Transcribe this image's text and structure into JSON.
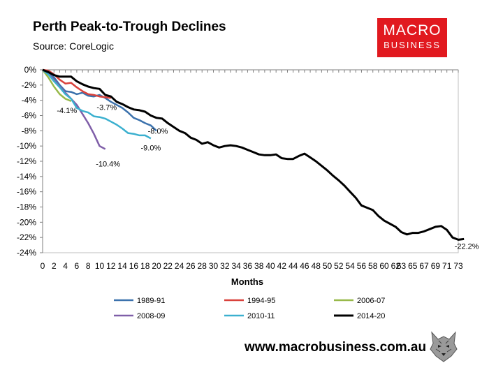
{
  "header": {
    "title": "Perth Peak-to-Trough Declines",
    "subtitle": "Source: CoreLogic"
  },
  "logo": {
    "line1": "MACRO",
    "line2": "BUSINESS"
  },
  "footer": {
    "url": "www.macrobusiness.com.au"
  },
  "chart_data": {
    "type": "line",
    "title": "Perth Peak-to-Trough Declines",
    "xlabel": "Months",
    "ylabel": "",
    "xlim": [
      0,
      73
    ],
    "ylim": [
      -24,
      0
    ],
    "x_ticks": [
      0,
      2,
      4,
      6,
      8,
      10,
      12,
      14,
      16,
      18,
      20,
      22,
      24,
      26,
      28,
      30,
      32,
      34,
      36,
      38,
      40,
      42,
      44,
      46,
      48,
      50,
      52,
      54,
      56,
      58,
      60,
      62,
      63,
      65,
      67,
      69,
      71,
      73
    ],
    "y_ticks": [
      0,
      -2,
      -4,
      -6,
      -8,
      -10,
      -12,
      -14,
      -16,
      -18,
      -20,
      -22,
      -24
    ],
    "y_tick_labels": [
      "0%",
      "-2%",
      "-4%",
      "-6%",
      "-8%",
      "-10%",
      "-12%",
      "-14%",
      "-16%",
      "-18%",
      "-20%",
      "-22%",
      "-24%"
    ],
    "legend_position": "bottom",
    "series": [
      {
        "name": "1989-91",
        "color": "#3c72ad",
        "end_label": "-8.0%",
        "values": [
          0,
          -0.3,
          -1.0,
          -2.0,
          -2.8,
          -2.9,
          -3.2,
          -3.0,
          -3.4,
          -3.5,
          -3.3,
          -3.7,
          -4.2,
          -4.6,
          -5.0,
          -5.6,
          -6.3,
          -6.6,
          -7.0,
          -7.3,
          -8.0
        ]
      },
      {
        "name": "1994-95",
        "color": "#d9423c",
        "end_label": "-3.7%",
        "values": [
          0,
          -0.1,
          -0.6,
          -1.3,
          -1.8,
          -1.7,
          -2.3,
          -2.8,
          -3.2,
          -3.3,
          -3.5,
          -3.6,
          -3.7
        ]
      },
      {
        "name": "2006-07",
        "color": "#98b94a",
        "end_label": "-4.1%",
        "values": [
          0,
          -1.0,
          -2.2,
          -3.2,
          -3.8,
          -4.1
        ]
      },
      {
        "name": "2008-09",
        "color": "#7f5ea8",
        "end_label": "-10.4%",
        "values": [
          0,
          -0.5,
          -1.3,
          -2.2,
          -3.0,
          -3.8,
          -4.6,
          -5.8,
          -7.0,
          -8.4,
          -10.0,
          -10.4
        ]
      },
      {
        "name": "2010-11",
        "color": "#3bb0cf",
        "end_label": "-9.0%",
        "values": [
          0,
          -0.6,
          -1.5,
          -2.3,
          -3.2,
          -3.8,
          -5.0,
          -5.4,
          -5.6,
          -6.1,
          -6.2,
          -6.4,
          -6.8,
          -7.2,
          -7.7,
          -8.3,
          -8.4,
          -8.6,
          -8.6,
          -9.0
        ]
      },
      {
        "name": "2014-20",
        "color": "#000000",
        "end_label": "-22.2%",
        "values": [
          0,
          -0.3,
          -0.7,
          -0.9,
          -0.9,
          -0.9,
          -1.5,
          -1.9,
          -2.2,
          -2.4,
          -2.5,
          -3.3,
          -3.5,
          -4.2,
          -4.5,
          -4.9,
          -5.2,
          -5.3,
          -5.5,
          -6.0,
          -6.3,
          -6.4,
          -7.0,
          -7.5,
          -8.0,
          -8.3,
          -8.9,
          -9.2,
          -9.7,
          -9.5,
          -9.9,
          -10.2,
          -10.0,
          -9.9,
          -10.0,
          -10.2,
          -10.5,
          -10.8,
          -11.1,
          -11.2,
          -11.2,
          -11.1,
          -11.6,
          -11.7,
          -11.7,
          -11.3,
          -11.0,
          -11.5,
          -12.0,
          -12.6,
          -13.2,
          -13.9,
          -14.5,
          -15.2,
          -16.0,
          -16.8,
          -17.8,
          -18.1,
          -18.4,
          -19.2,
          -19.8,
          -20.2,
          -20.6,
          -21.3,
          -21.6,
          -21.4,
          -21.4,
          -21.2,
          -20.9,
          -20.6,
          -20.5,
          -21.0,
          -22.0,
          -22.3,
          -22.2
        ]
      }
    ]
  }
}
